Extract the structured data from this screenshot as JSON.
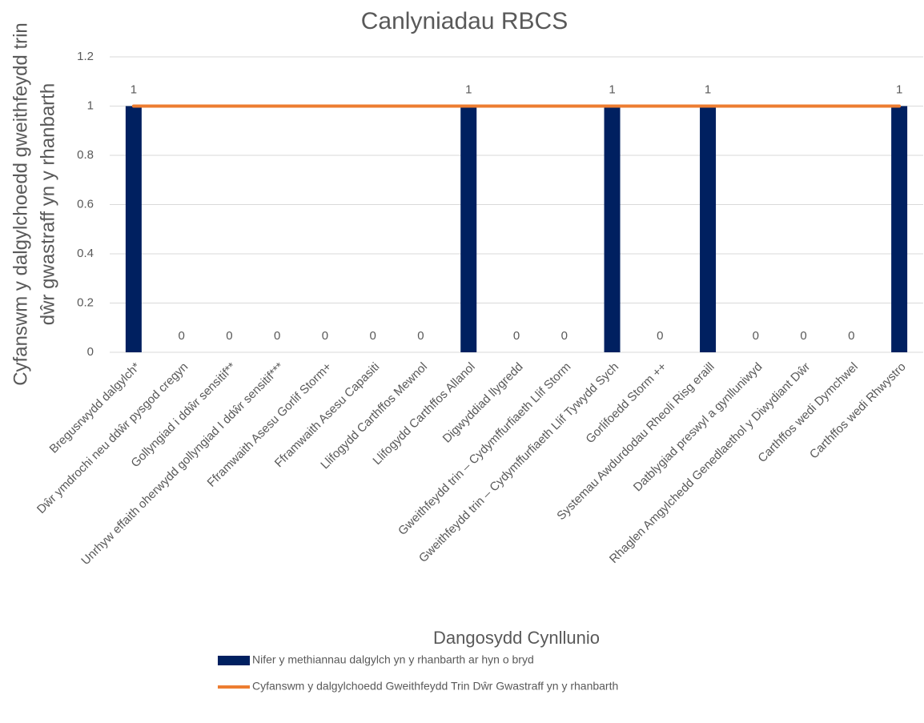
{
  "chart_data": {
    "type": "combo",
    "title": "Canlyniadau RBCS",
    "x_label": "Dangosydd Cynllunio",
    "y_label": [
      "Cyfanswm y dalgylchoedd gweithfeydd trin",
      "dŵr gwastraff  yn y rhanbarth"
    ],
    "categories": [
      "Bregusrwydd dalgylch*",
      "Dŵr ymdrochi neu ddŵr pysgod cregyn",
      "Gollyngiad i ddŵr sensitif**",
      "Unrhyw effaith oherwydd gollyngiad I ddŵr sensitif***",
      "Fframwaith Asesu Gorlif Storm+",
      "Fframwaith Asesu Capasiti",
      "Llifogydd Carthffos Mewnol",
      "Llifogydd Carthffos Allanol",
      "Digwyddiad llygredd",
      "Gweithfeydd trin – Cydymffurfiaeth Llif Storm",
      "Gweithfeydd trin – Cydymffurfiaeth Llif Tywydd Sych",
      "Gorlifoedd Storm ++",
      "Systemau Awdurdodau Rheoli Risg eraill",
      "Datblygiad preswyl a gynlluniwyd",
      "Rhaglen Amgylchedd Genedlaethol y Diwydiant Dŵr",
      "Carthffos wedi Dymchwel",
      "Carthffos wedi Rhwystro"
    ],
    "series": [
      {
        "name": "Nifer y methiannau dalgylch yn y rhanbarth ar hyn o bryd",
        "type": "bar",
        "color": "#002060",
        "values": [
          1,
          0,
          0,
          0,
          0,
          0,
          0,
          1,
          0,
          0,
          1,
          0,
          1,
          0,
          0,
          0,
          1
        ]
      },
      {
        "name": "Cyfanswm y dalgylchoedd Gweithfeydd Trin Dŵr Gwastraff yn y rhanbarth",
        "type": "line",
        "color": "#ed7d31",
        "values": [
          1,
          1,
          1,
          1,
          1,
          1,
          1,
          1,
          1,
          1,
          1,
          1,
          1,
          1,
          1,
          1,
          1
        ]
      }
    ],
    "ylim": [
      0,
      1.2
    ],
    "yticks": [
      0,
      0.2,
      0.4,
      0.6,
      0.8,
      1,
      1.2
    ],
    "grid": true
  }
}
